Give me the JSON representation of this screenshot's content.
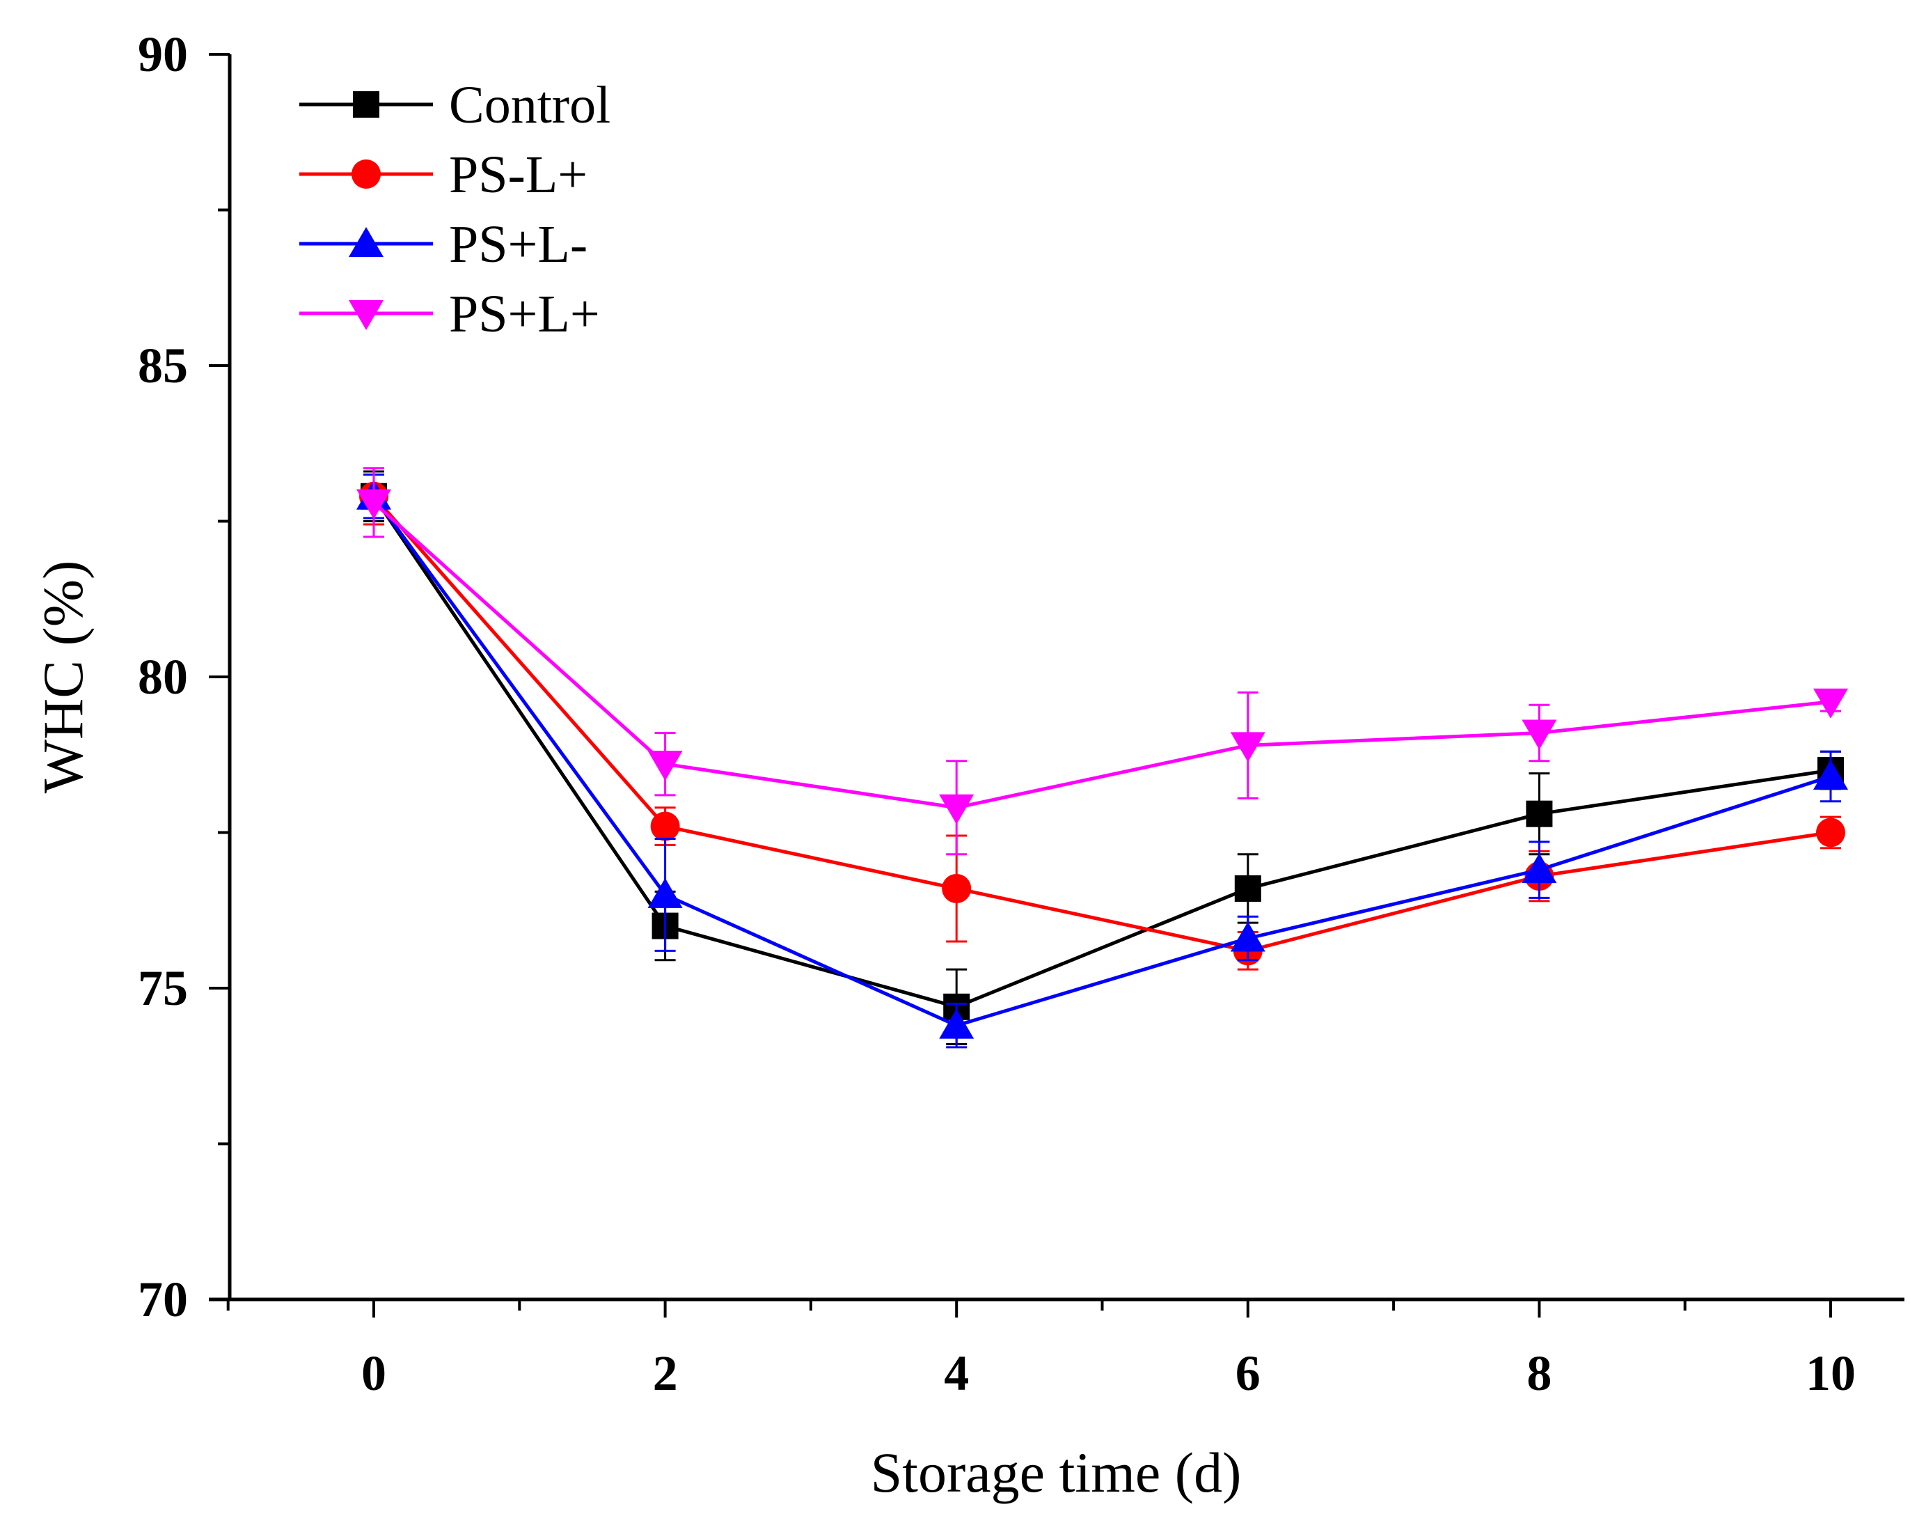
{
  "chart_data": {
    "type": "line",
    "title": "",
    "xlabel": "Storage time (d)",
    "ylabel": "WHC (%)",
    "xlim": [
      -1,
      10.5
    ],
    "ylim": [
      70,
      90
    ],
    "x_ticks": [
      0,
      2,
      4,
      6,
      8,
      10
    ],
    "y_ticks": [
      70,
      75,
      80,
      85,
      90
    ],
    "x_tick_labels": [
      "0",
      "2",
      "4",
      "6",
      "8",
      "10"
    ],
    "y_tick_labels": [
      "70",
      "75",
      "80",
      "85",
      "90"
    ],
    "legend_position": "top-left",
    "grid": false,
    "x": [
      0,
      2,
      4,
      6,
      8,
      10
    ],
    "series": [
      {
        "name": "Control",
        "color": "#000000",
        "marker": "square",
        "values": [
          82.9,
          76.0,
          74.7,
          76.6,
          77.8,
          78.5
        ],
        "errors": [
          0.4,
          0.55,
          0.6,
          0.55,
          0.65,
          0.3
        ]
      },
      {
        "name": "PS-L+",
        "color": "#ff0000",
        "marker": "circle",
        "values": [
          82.9,
          77.6,
          76.6,
          75.6,
          76.8,
          77.5
        ],
        "errors": [
          0.45,
          0.3,
          0.85,
          0.3,
          0.4,
          0.25
        ]
      },
      {
        "name": "PS+L-",
        "color": "#0000ff",
        "marker": "triangle-up",
        "values": [
          82.9,
          76.5,
          74.4,
          75.8,
          76.9,
          78.4
        ],
        "errors": [
          0.35,
          0.9,
          0.35,
          0.35,
          0.45,
          0.4
        ]
      },
      {
        "name": "PS+L+",
        "color": "#ff00ff",
        "marker": "triangle-down",
        "values": [
          82.8,
          78.6,
          77.9,
          78.9,
          79.1,
          79.6
        ],
        "errors": [
          0.55,
          0.5,
          0.75,
          0.85,
          0.45,
          0.15
        ]
      }
    ]
  }
}
